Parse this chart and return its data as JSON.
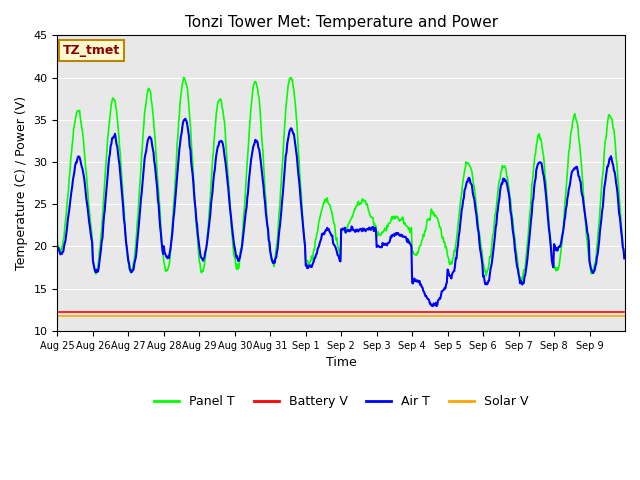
{
  "title": "Tonzi Tower Met: Temperature and Power",
  "xlabel": "Time",
  "ylabel": "Temperature (C) / Power (V)",
  "ylim": [
    10,
    45
  ],
  "yticks": [
    10,
    15,
    20,
    25,
    30,
    35,
    40,
    45
  ],
  "annotation_text": "TZ_tmet",
  "annotation_color": "#8B0000",
  "annotation_bg": "#FFFACD",
  "annotation_border": "#B8860B",
  "bg_color": "#E8E8E8",
  "panel_t_color": "#00FF00",
  "battery_v_color": "#FF0000",
  "air_t_color": "#0000FF",
  "solar_v_color": "#FFA500",
  "x_labels": [
    "Aug 25",
    "Aug 26",
    "Aug 27",
    "Aug 28",
    "Aug 29",
    "Aug 30",
    "Aug 31",
    "Sep 1",
    "Sep 2",
    "Sep 3",
    "Sep 4",
    "Sep 5",
    "Sep 6",
    "Sep 7",
    "Sep 8",
    "Sep 9"
  ],
  "panel_t_mins": [
    19.5,
    17.0,
    17.0,
    17.0,
    17.0,
    17.5,
    18.0,
    18.0,
    22.0,
    21.5,
    19.0,
    18.0,
    17.0,
    16.0,
    17.0,
    17.0
  ],
  "panel_t_maxs": [
    36.0,
    37.5,
    38.5,
    40.0,
    37.5,
    39.5,
    40.0,
    25.5,
    25.5,
    23.5,
    24.0,
    30.0,
    29.5,
    33.0,
    35.5,
    35.5
  ],
  "air_t_mins": [
    19.0,
    17.0,
    17.0,
    18.5,
    18.5,
    18.5,
    18.0,
    17.5,
    22.0,
    20.0,
    16.0,
    16.5,
    15.5,
    15.5,
    19.5,
    17.0
  ],
  "air_t_maxs": [
    30.5,
    33.0,
    33.0,
    35.0,
    32.5,
    32.5,
    34.0,
    22.0,
    22.0,
    21.5,
    13.0,
    28.0,
    28.0,
    30.0,
    29.5,
    30.5
  ],
  "battery_v_value": 12.2,
  "solar_v_value": 11.8
}
